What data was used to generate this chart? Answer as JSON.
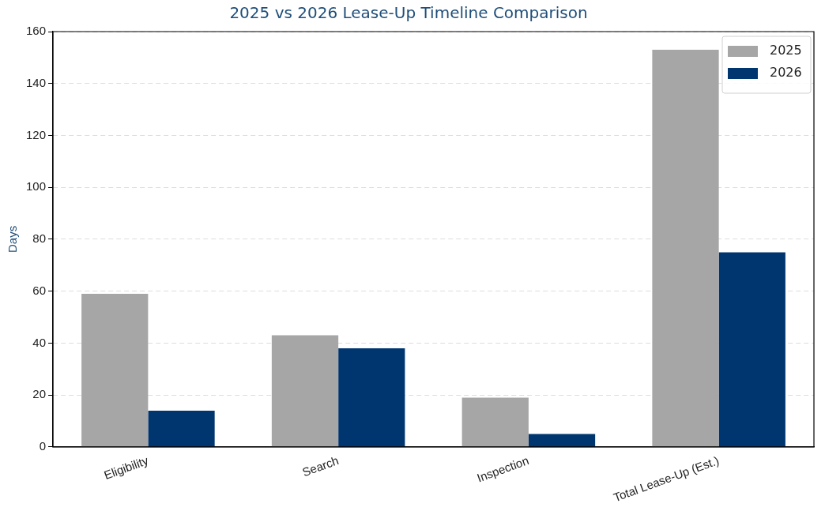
{
  "chart_data": {
    "type": "bar",
    "title": "2025 vs 2026 Lease-Up Timeline Comparison",
    "ylabel": "Days",
    "categories": [
      "Eligibility",
      "Search",
      "Inspection",
      "Total Lease-Up (Est.)"
    ],
    "series": [
      {
        "name": "2025",
        "color": "#a6a6a6",
        "values": [
          59,
          43,
          19,
          153
        ]
      },
      {
        "name": "2026",
        "color": "#003670",
        "values": [
          14,
          38,
          5,
          75
        ]
      }
    ],
    "ylim": [
      0,
      160
    ],
    "yticks": [
      0,
      20,
      40,
      60,
      80,
      100,
      120,
      140,
      160
    ],
    "grid": "y",
    "legend": "top right"
  }
}
